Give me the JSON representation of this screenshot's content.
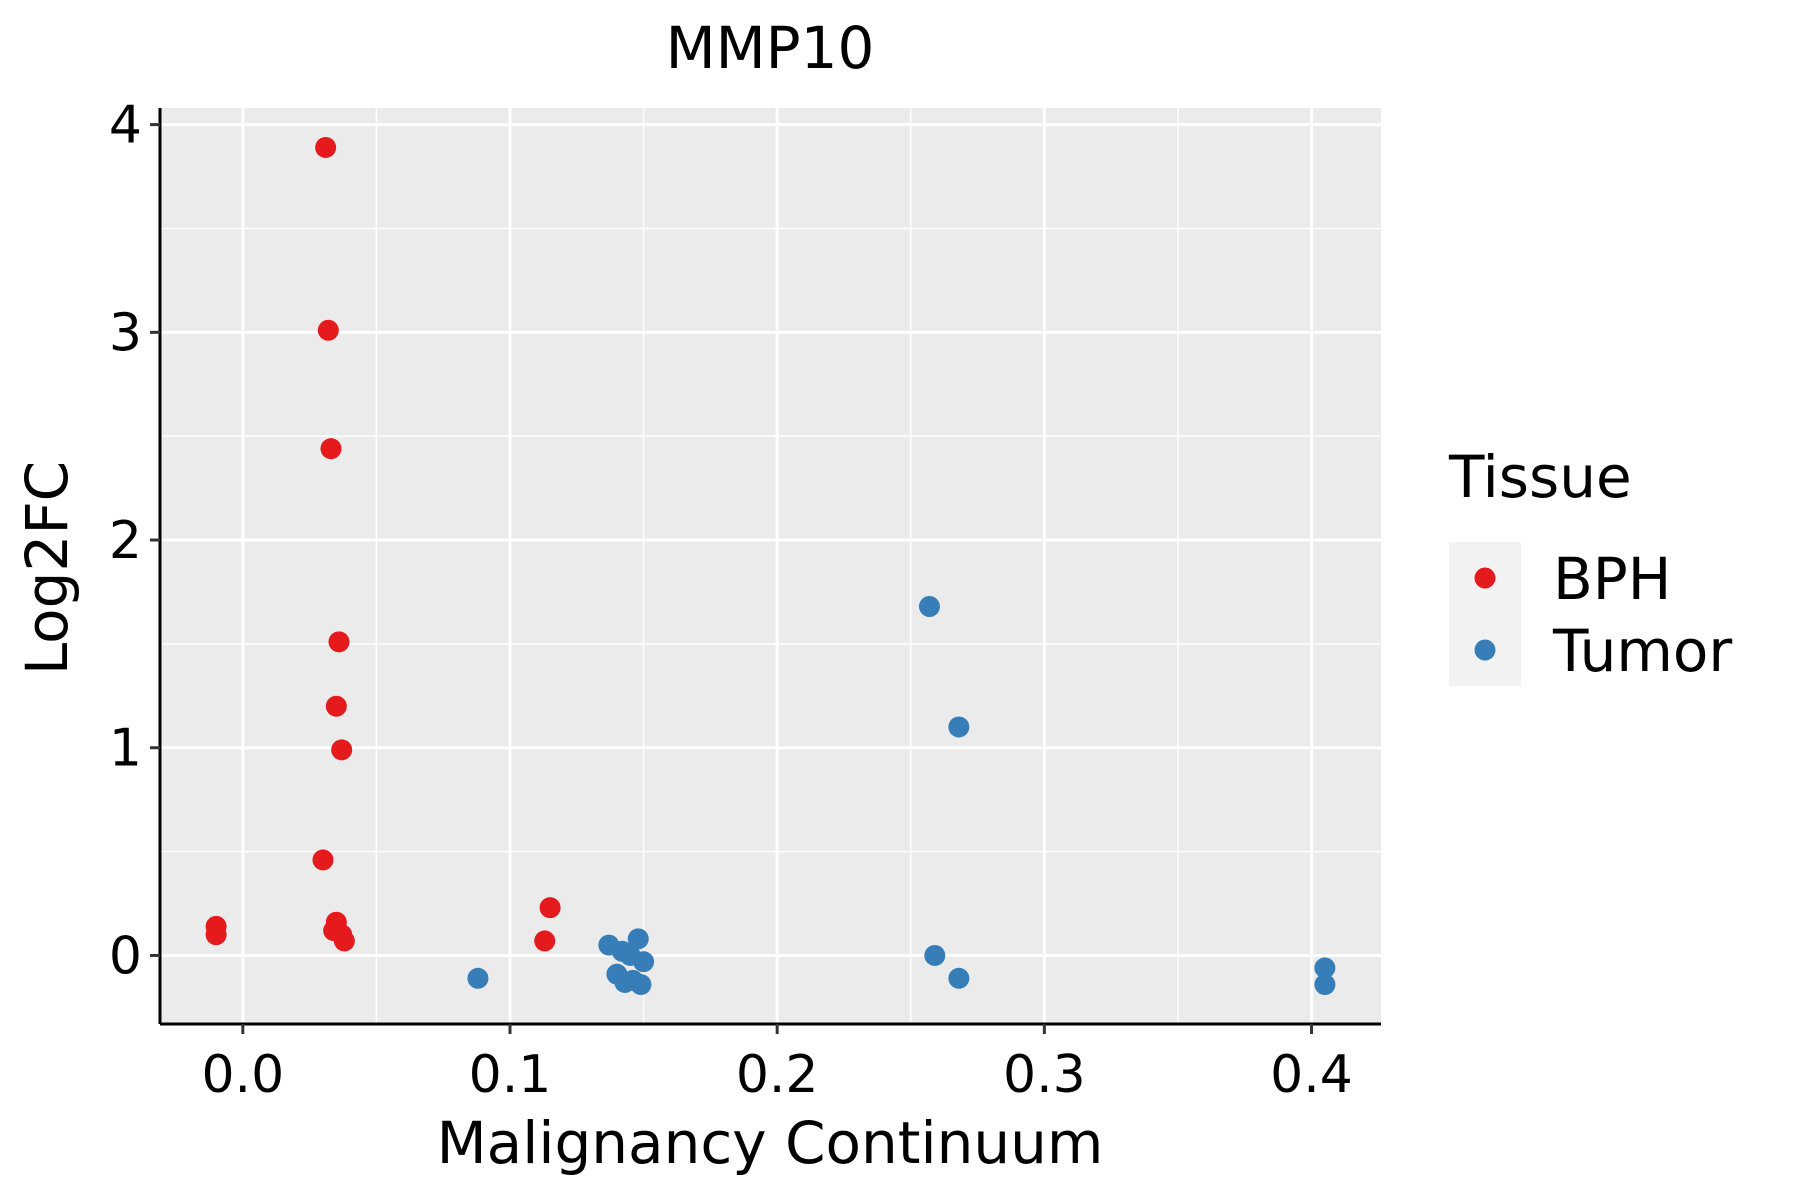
{
  "chart_data": {
    "type": "scatter",
    "title": "MMP10",
    "xlabel": "Malignancy Continuum",
    "ylabel": "Log2FC",
    "xlim": [
      -0.031,
      0.426
    ],
    "ylim": [
      -0.33,
      4.08
    ],
    "x_ticks": [
      0.0,
      0.1,
      0.2,
      0.3,
      0.4
    ],
    "x_tick_labels": [
      "0.0",
      "0.1",
      "0.2",
      "0.3",
      "0.4"
    ],
    "y_ticks": [
      0,
      1,
      2,
      3,
      4
    ],
    "y_tick_labels": [
      "0",
      "1",
      "2",
      "3",
      "4"
    ],
    "grid": true,
    "legend": {
      "title": "Tissue",
      "position": "right"
    },
    "series": [
      {
        "name": "BPH",
        "color": "#E41A1C",
        "points": [
          {
            "x": 0.031,
            "y": 3.89
          },
          {
            "x": 0.032,
            "y": 3.01
          },
          {
            "x": 0.033,
            "y": 2.44
          },
          {
            "x": 0.036,
            "y": 1.51
          },
          {
            "x": 0.035,
            "y": 1.2
          },
          {
            "x": 0.037,
            "y": 0.99
          },
          {
            "x": 0.03,
            "y": 0.46
          },
          {
            "x": 0.035,
            "y": 0.16
          },
          {
            "x": 0.034,
            "y": 0.12
          },
          {
            "x": 0.037,
            "y": 0.1
          },
          {
            "x": 0.038,
            "y": 0.07
          },
          {
            "x": -0.01,
            "y": 0.14
          },
          {
            "x": -0.01,
            "y": 0.1
          },
          {
            "x": 0.115,
            "y": 0.23
          },
          {
            "x": 0.113,
            "y": 0.07
          }
        ]
      },
      {
        "name": "Tumor",
        "color": "#377EB8",
        "points": [
          {
            "x": 0.088,
            "y": -0.11
          },
          {
            "x": 0.137,
            "y": 0.05
          },
          {
            "x": 0.142,
            "y": 0.02
          },
          {
            "x": 0.148,
            "y": 0.08
          },
          {
            "x": 0.15,
            "y": -0.03
          },
          {
            "x": 0.14,
            "y": -0.09
          },
          {
            "x": 0.143,
            "y": -0.13
          },
          {
            "x": 0.146,
            "y": -0.12
          },
          {
            "x": 0.149,
            "y": -0.14
          },
          {
            "x": 0.145,
            "y": 0.0
          },
          {
            "x": 0.257,
            "y": 1.68
          },
          {
            "x": 0.268,
            "y": 1.1
          },
          {
            "x": 0.259,
            "y": 0.0
          },
          {
            "x": 0.268,
            "y": -0.11
          },
          {
            "x": 0.405,
            "y": -0.06
          },
          {
            "x": 0.405,
            "y": -0.14
          }
        ]
      }
    ]
  }
}
